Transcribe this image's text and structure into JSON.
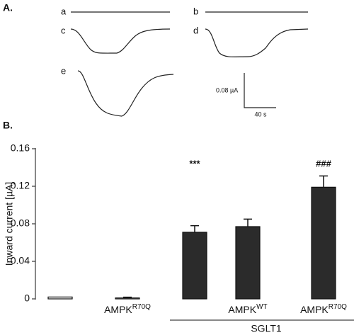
{
  "panel_a": {
    "label": "A.",
    "traces": [
      "a",
      "b",
      "c",
      "d",
      "e"
    ],
    "scale_bar": {
      "y_label": "0.08 µA",
      "x_label": "40 s"
    }
  },
  "chart_data": {
    "type": "bar",
    "panel_label": "B.",
    "y_label": "Inward current [µA]",
    "categories": [
      null,
      {
        "main": "AMPK",
        "sup": "R70Q"
      },
      null,
      {
        "main": "AMPK",
        "sup": "WT"
      },
      {
        "main": "AMPK",
        "sup": "R70Q"
      }
    ],
    "values": [
      0.002,
      0.001,
      0.071,
      0.077,
      0.119
    ],
    "errors": [
      null,
      0.0008,
      0.007,
      0.008,
      0.012
    ],
    "colors": [
      "#ffffff",
      "#ffffff",
      "#2b2b2b",
      "#2b2b2b",
      "#2b2b2b"
    ],
    "ylim": [
      0,
      0.16
    ],
    "yticks": [
      0,
      0.04,
      0.08,
      0.12,
      0.16
    ],
    "annotations": [
      {
        "text": "***",
        "category": 2
      },
      {
        "text": "###",
        "category": 4
      }
    ],
    "group": {
      "text": "SGLT1",
      "from": 2,
      "to": 4
    }
  }
}
